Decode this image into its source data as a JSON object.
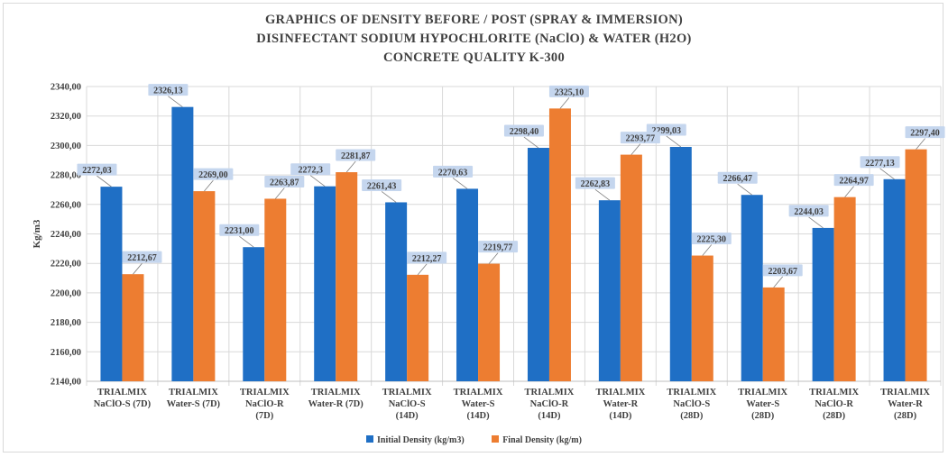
{
  "chart_data": {
    "type": "bar",
    "title_lines": [
      "GRAPHICS OF DENSITY BEFORE / POST (SPRAY & IMMERSION)",
      "DISINFECTANT SODIUM HYPOCHLORITE (NaClO) & WATER (H2O)",
      "CONCRETE QUALITY K-300"
    ],
    "xlabel": "",
    "ylabel": "Kg/m3",
    "ylim": [
      2140,
      2340
    ],
    "ytick_step": 20,
    "ytick_labels": [
      "2140,00",
      "2160,00",
      "2180,00",
      "2200,00",
      "2220,00",
      "2240,00",
      "2260,00",
      "2280,00",
      "2300,00",
      "2320,00",
      "2340,00"
    ],
    "grid": "horizontal",
    "legend_position": "bottom",
    "categories": [
      [
        "TRIALMIX",
        "NaClO-S (7D)"
      ],
      [
        "TRIALMIX",
        "Water-S (7D)"
      ],
      [
        "TRIALMIX",
        "NaClO-R",
        "(7D)"
      ],
      [
        "TRIALMIX",
        "Water-R (7D)"
      ],
      [
        "TRIALMIX",
        "NaClO-S",
        "(14D)"
      ],
      [
        "TRIALMIX",
        "Water-S",
        "(14D)"
      ],
      [
        "TRIALMIX",
        "NaClO-R",
        "(14D)"
      ],
      [
        "TRIALMIX",
        "Water-R",
        "(14D)"
      ],
      [
        "TRIALMIX",
        "NaClO-S",
        "(28D)"
      ],
      [
        "TRIALMIX",
        "Water-S",
        "(28D)"
      ],
      [
        "TRIALMIX",
        "NaClO-R",
        "(28D)"
      ],
      [
        "TRIALMIX",
        "Water-R",
        "(28D)"
      ]
    ],
    "series": [
      {
        "name": "Initial Density (kg/m3)",
        "color": "#1f6fc5",
        "values": [
          2272.03,
          2326.13,
          2231.0,
          2272.3,
          2261.43,
          2270.63,
          2298.4,
          2262.83,
          2299.03,
          2266.47,
          2244.03,
          2277.13
        ],
        "labels": [
          "2272,03",
          "2326,13",
          "2231,00",
          "2272,3",
          "2261,43",
          "2270,63",
          "2298,40",
          "2262,83",
          "2299,03",
          "2266,47",
          "2244,03",
          "2277,13"
        ]
      },
      {
        "name": "Final Density (kg/m)",
        "color": "#ed7d31",
        "values": [
          2212.67,
          2269.0,
          2263.87,
          2281.87,
          2212.27,
          2219.77,
          2325.1,
          2293.77,
          2225.3,
          2203.67,
          2264.97,
          2297.4
        ],
        "labels": [
          "2212,67",
          "2269,00",
          "2263,87",
          "2281,87",
          "2212,27",
          "2219,77",
          "2325,10",
          "2293,77",
          "2225,30",
          "2203,67",
          "2264,97",
          "2297,40"
        ]
      }
    ],
    "data_label_fill": "#c5d6ee"
  }
}
